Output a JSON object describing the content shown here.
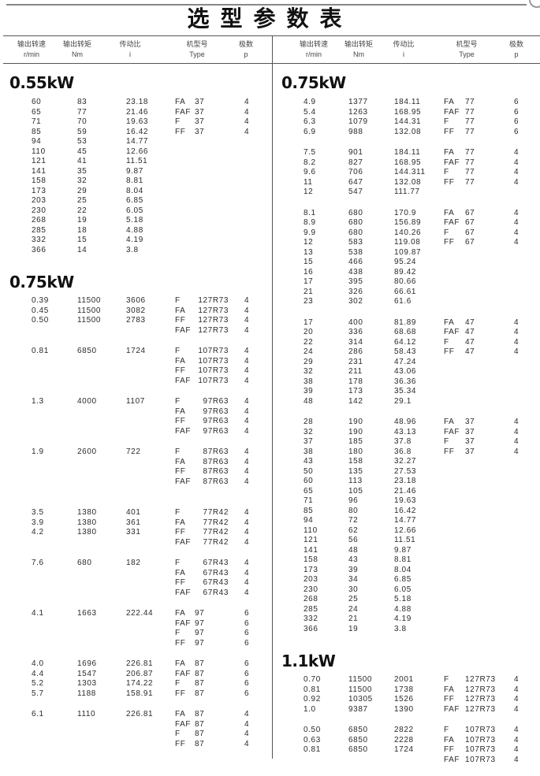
{
  "title": "选型参数表",
  "headers": [
    {
      "cn": "输出转速",
      "en": "r/min"
    },
    {
      "cn": "输出转矩",
      "en": "Nm"
    },
    {
      "cn": "传动比",
      "en": "i"
    },
    {
      "cn": "机型号",
      "en": "Type"
    },
    {
      "cn": "极数",
      "en": "p"
    }
  ],
  "columns": [
    {
      "sections": [
        {
          "power": "0.55kW",
          "groups": [
            {
              "rows": [
                [
                  "60",
                  "83",
                  "23.18"
                ],
                [
                  "65",
                  "77",
                  "21.46"
                ],
                [
                  "71",
                  "70",
                  "19.63"
                ],
                [
                  "85",
                  "59",
                  "16.42"
                ],
                [
                  "94",
                  "53",
                  "14.77"
                ],
                [
                  "110",
                  "45",
                  "12.66"
                ],
                [
                  "121",
                  "41",
                  "11.51"
                ],
                [
                  "141",
                  "35",
                  "9.87"
                ],
                [
                  "158",
                  "32",
                  "8.81"
                ],
                [
                  "173",
                  "29",
                  "8.04"
                ],
                [
                  "203",
                  "25",
                  "6.85"
                ],
                [
                  "230",
                  "22",
                  "6.05"
                ],
                [
                  "268",
                  "19",
                  "5.18"
                ],
                [
                  "285",
                  "18",
                  "4.88"
                ],
                [
                  "332",
                  "15",
                  "4.19"
                ],
                [
                  "366",
                  "14",
                  "3.8"
                ]
              ],
              "types": [
                [
                  "FA",
                  "37",
                  "4"
                ],
                [
                  "FAF",
                  "37",
                  "4"
                ],
                [
                  "F",
                  "37",
                  "4"
                ],
                [
                  "FF",
                  "37",
                  "4"
                ]
              ]
            }
          ]
        },
        {
          "power": "0.75kW",
          "groups": [
            {
              "rows": [
                [
                  "0.39",
                  "11500",
                  "3606"
                ],
                [
                  "0.45",
                  "11500",
                  "3082"
                ],
                [
                  "0.50",
                  "11500",
                  "2783"
                ]
              ],
              "types": [
                [
                  "F",
                  "127R73",
                  "4"
                ],
                [
                  "FA",
                  "127R73",
                  "4"
                ],
                [
                  "FF",
                  "127R73",
                  "4"
                ],
                [
                  "FAF",
                  "127R73",
                  "4"
                ]
              ]
            },
            {
              "rows": [
                [
                  "0.81",
                  "6850",
                  "1724"
                ]
              ],
              "types": [
                [
                  "F",
                  "107R73",
                  "4"
                ],
                [
                  "FA",
                  "107R73",
                  "4"
                ],
                [
                  "FF",
                  "107R73",
                  "4"
                ],
                [
                  "FAF",
                  "107R73",
                  "4"
                ]
              ]
            },
            {
              "rows": [
                [
                  "1.3",
                  "4000",
                  "1107"
                ]
              ],
              "types": [
                [
                  "F",
                  "97R63",
                  "4"
                ],
                [
                  "FA",
                  "97R63",
                  "4"
                ],
                [
                  "FF",
                  "97R63",
                  "4"
                ],
                [
                  "FAF",
                  "97R63",
                  "4"
                ]
              ]
            },
            {
              "rows": [
                [
                  "1.9",
                  "2600",
                  "722"
                ]
              ],
              "types": [
                [
                  "F",
                  "87R63",
                  "4"
                ],
                [
                  "FA",
                  "87R63",
                  "4"
                ],
                [
                  "FF",
                  "87R63",
                  "4"
                ],
                [
                  "FAF",
                  "87R63",
                  "4"
                ]
              ]
            },
            {
              "rows": [
                [
                  "3.5",
                  "1380",
                  "401"
                ],
                [
                  "3.9",
                  "1380",
                  "361"
                ],
                [
                  "4.2",
                  "1380",
                  "331"
                ]
              ],
              "types": [
                [
                  "F",
                  "77R42",
                  "4"
                ],
                [
                  "FA",
                  "77R42",
                  "4"
                ],
                [
                  "FF",
                  "77R42",
                  "4"
                ],
                [
                  "FAF",
                  "77R42",
                  "4"
                ]
              ]
            },
            {
              "rows": [
                [
                  "7.6",
                  "680",
                  "182"
                ]
              ],
              "types": [
                [
                  "F",
                  "67R43",
                  "4"
                ],
                [
                  "FA",
                  "67R43",
                  "4"
                ],
                [
                  "FF",
                  "67R43",
                  "4"
                ],
                [
                  "FAF",
                  "67R43",
                  "4"
                ]
              ]
            },
            {
              "rows": [
                [
                  "4.1",
                  "1663",
                  "222.44"
                ]
              ],
              "types": [
                [
                  "FA",
                  "97",
                  "6"
                ],
                [
                  "FAF",
                  "97",
                  "6"
                ],
                [
                  "F",
                  "97",
                  "6"
                ],
                [
                  "FF",
                  "97",
                  "6"
                ]
              ]
            },
            {
              "rows": [
                [
                  "4.0",
                  "1696",
                  "226.81"
                ],
                [
                  "4.4",
                  "1547",
                  "206.87"
                ],
                [
                  "5.2",
                  "1303",
                  "174.22"
                ],
                [
                  "5.7",
                  "1188",
                  "158.91"
                ]
              ],
              "types": [
                [
                  "FA",
                  "87",
                  "6"
                ],
                [
                  "FAF",
                  "87",
                  "6"
                ],
                [
                  "F",
                  "87",
                  "6"
                ],
                [
                  "FF",
                  "87",
                  "6"
                ]
              ]
            },
            {
              "rows": [
                [
                  "6.1",
                  "1110",
                  "226.81"
                ]
              ],
              "types": [
                [
                  "FA",
                  "87",
                  "4"
                ],
                [
                  "FAF",
                  "87",
                  "4"
                ],
                [
                  "F",
                  "87",
                  "4"
                ],
                [
                  "FF",
                  "87",
                  "4"
                ]
              ]
            }
          ]
        }
      ]
    },
    {
      "sections": [
        {
          "power": "0.75kW",
          "groups": [
            {
              "rows": [
                [
                  "4.9",
                  "1377",
                  "184.11"
                ],
                [
                  "5.4",
                  "1263",
                  "168.95"
                ],
                [
                  "6.3",
                  "1079",
                  "144.31"
                ],
                [
                  "6.9",
                  "988",
                  "132.08"
                ]
              ],
              "types": [
                [
                  "FA",
                  "77",
                  "6"
                ],
                [
                  "FAF",
                  "77",
                  "6"
                ],
                [
                  "F",
                  "77",
                  "6"
                ],
                [
                  "FF",
                  "77",
                  "6"
                ]
              ]
            },
            {
              "rows": [
                [
                  "7.5",
                  "901",
                  "184.11"
                ],
                [
                  "8.2",
                  "827",
                  "168.95"
                ],
                [
                  "9.6",
                  "706",
                  "144.311"
                ],
                [
                  "11",
                  "647",
                  "132.08"
                ],
                [
                  "12",
                  "547",
                  "111.77"
                ]
              ],
              "types": [
                [
                  "FA",
                  "77",
                  "4"
                ],
                [
                  "FAF",
                  "77",
                  "4"
                ],
                [
                  "F",
                  "77",
                  "4"
                ],
                [
                  "FF",
                  "77",
                  "4"
                ]
              ]
            },
            {
              "rows": [
                [
                  "8.1",
                  "680",
                  "170.9"
                ],
                [
                  "8.9",
                  "680",
                  "156.89"
                ],
                [
                  "9.9",
                  "680",
                  "140.26"
                ],
                [
                  "12",
                  "583",
                  "119.08"
                ],
                [
                  "13",
                  "538",
                  "109.87"
                ],
                [
                  "15",
                  "466",
                  "95.24"
                ],
                [
                  "16",
                  "438",
                  "89.42"
                ],
                [
                  "17",
                  "395",
                  "80.66"
                ],
                [
                  "21",
                  "326",
                  "66.61"
                ],
                [
                  "23",
                  "302",
                  "61.6"
                ]
              ],
              "types": [
                [
                  "FA",
                  "67",
                  "4"
                ],
                [
                  "FAF",
                  "67",
                  "4"
                ],
                [
                  "F",
                  "67",
                  "4"
                ],
                [
                  "FF",
                  "67",
                  "4"
                ]
              ]
            },
            {
              "rows": [
                [
                  "17",
                  "400",
                  "81.89"
                ],
                [
                  "20",
                  "336",
                  "68.68"
                ],
                [
                  "22",
                  "314",
                  "64.12"
                ],
                [
                  "24",
                  "286",
                  "58.43"
                ],
                [
                  "29",
                  "231",
                  "47.24"
                ],
                [
                  "32",
                  "211",
                  "43.06"
                ],
                [
                  "38",
                  "178",
                  "36.36"
                ],
                [
                  "39",
                  "173",
                  "35.34"
                ],
                [
                  "48",
                  "142",
                  "29.1"
                ]
              ],
              "types": [
                [
                  "FA",
                  "47",
                  "4"
                ],
                [
                  "FAF",
                  "47",
                  "4"
                ],
                [
                  "F",
                  "47",
                  "4"
                ],
                [
                  "FF",
                  "47",
                  "4"
                ]
              ]
            },
            {
              "rows": [
                [
                  "28",
                  "190",
                  "48.96"
                ],
                [
                  "32",
                  "190",
                  "43.13"
                ],
                [
                  "37",
                  "185",
                  "37.8"
                ],
                [
                  "38",
                  "180",
                  "36.8"
                ],
                [
                  "43",
                  "158",
                  "32.27"
                ],
                [
                  "50",
                  "135",
                  "27.53"
                ],
                [
                  "60",
                  "113",
                  "23.18"
                ],
                [
                  "65",
                  "105",
                  "21.46"
                ],
                [
                  "71",
                  "96",
                  "19.63"
                ],
                [
                  "85",
                  "80",
                  "16.42"
                ],
                [
                  "94",
                  "72",
                  "14.77"
                ],
                [
                  "110",
                  "62",
                  "12.66"
                ],
                [
                  "121",
                  "56",
                  "11.51"
                ],
                [
                  "141",
                  "48",
                  "9.87"
                ],
                [
                  "158",
                  "43",
                  "8.81"
                ],
                [
                  "173",
                  "39",
                  "8.04"
                ],
                [
                  "203",
                  "34",
                  "6.85"
                ],
                [
                  "230",
                  "30",
                  "6.05"
                ],
                [
                  "268",
                  "25",
                  "5.18"
                ],
                [
                  "285",
                  "24",
                  "4.88"
                ],
                [
                  "332",
                  "21",
                  "4.19"
                ],
                [
                  "366",
                  "19",
                  "3.8"
                ]
              ],
              "types": [
                [
                  "FA",
                  "37",
                  "4"
                ],
                [
                  "FAF",
                  "37",
                  "4"
                ],
                [
                  "F",
                  "37",
                  "4"
                ],
                [
                  "FF",
                  "37",
                  "4"
                ]
              ]
            }
          ]
        },
        {
          "power": "1.1kW",
          "groups": [
            {
              "rows": [
                [
                  "0.70",
                  "11500",
                  "2001"
                ],
                [
                  "0.81",
                  "11500",
                  "1738"
                ],
                [
                  "0.92",
                  "10305",
                  "1526"
                ],
                [
                  "1.0",
                  "9387",
                  "1390"
                ]
              ],
              "types": [
                [
                  "F",
                  "127R73",
                  "4"
                ],
                [
                  "FA",
                  "127R73",
                  "4"
                ],
                [
                  "FF",
                  "127R73",
                  "4"
                ],
                [
                  "FAF",
                  "127R73",
                  "4"
                ]
              ]
            },
            {
              "rows": [
                [
                  "0.50",
                  "6850",
                  "2822"
                ],
                [
                  "0.63",
                  "6850",
                  "2228"
                ],
                [
                  "0.81",
                  "6850",
                  "1724"
                ]
              ],
              "types": [
                [
                  "F",
                  "107R73",
                  "4"
                ],
                [
                  "FA",
                  "107R73",
                  "4"
                ],
                [
                  "FF",
                  "107R73",
                  "4"
                ],
                [
                  "FAF",
                  "107R73",
                  "4"
                ]
              ]
            }
          ]
        }
      ]
    }
  ]
}
